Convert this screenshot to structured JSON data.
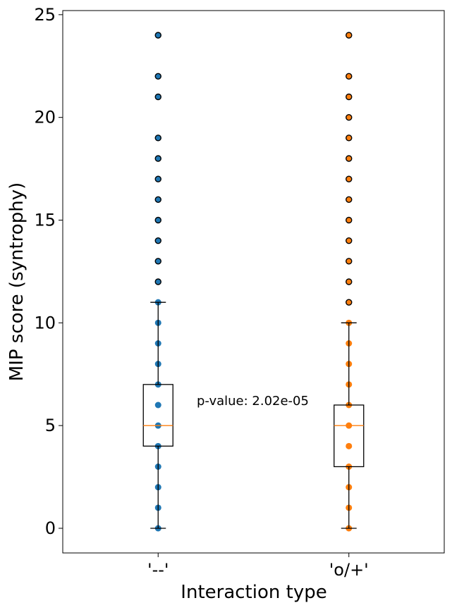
{
  "chart_data": {
    "type": "box",
    "xlabel": "Interaction type",
    "ylabel": "MIP score (syntrophy)",
    "ylim": [
      -1.2,
      25.2
    ],
    "yticks": [
      0,
      5,
      10,
      15,
      20,
      25
    ],
    "grid": false,
    "annotation": "p-value: 2.02e-05",
    "groups": [
      {
        "label": "'--'",
        "color": "#1f77b4",
        "box": {
          "whisker_low": 0,
          "q1": 4,
          "median": 5,
          "q3": 7,
          "whisker_high": 11
        },
        "outliers": [
          12,
          13,
          14,
          15,
          16,
          17,
          18,
          19,
          21,
          22,
          24
        ],
        "points": [
          0,
          1,
          2,
          3,
          4,
          5,
          6,
          7,
          8,
          9,
          10,
          11,
          12,
          13,
          14,
          15,
          16,
          17,
          18,
          19,
          21,
          22,
          24
        ]
      },
      {
        "label": "'o/+'",
        "color": "#ff7f0e",
        "box": {
          "whisker_low": 0,
          "q1": 3,
          "median": 5,
          "q3": 6,
          "whisker_high": 10
        },
        "outliers": [
          11,
          12,
          13,
          14,
          15,
          16,
          17,
          18,
          19,
          20,
          21,
          22,
          24
        ],
        "points": [
          0,
          1,
          2,
          3,
          4,
          5,
          6,
          7,
          8,
          9,
          10,
          11,
          12,
          13,
          14,
          15,
          16,
          17,
          18,
          19,
          20,
          21,
          22,
          24
        ]
      }
    ]
  }
}
